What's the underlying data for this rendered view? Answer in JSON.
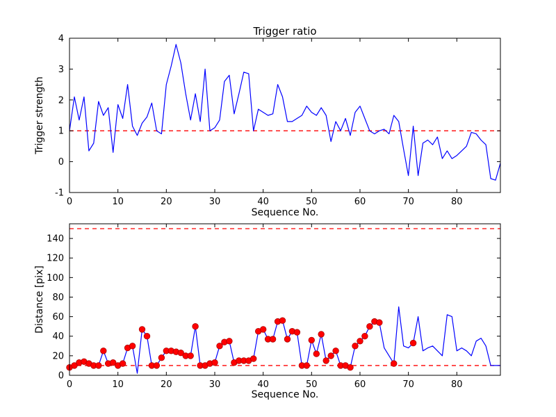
{
  "figure": {
    "background": "#ffffff",
    "line_color": "#0000ff",
    "dash_color": "#ff0000",
    "marker_face": "#ff0000",
    "marker_edge": "#aa0000",
    "axis_color": "#000000"
  },
  "chart_data": [
    {
      "type": "line",
      "title": "Trigger ratio",
      "xlabel": "Sequence No.",
      "ylabel": "Trigger strength",
      "xlim": [
        0,
        89
      ],
      "ylim": [
        -1,
        4
      ],
      "xticks": [
        0,
        10,
        20,
        30,
        40,
        50,
        60,
        70,
        80
      ],
      "yticks": [
        -1,
        0,
        1,
        2,
        3,
        4
      ],
      "thresholds": [
        1.0
      ],
      "legend": "none",
      "grid": false,
      "y": [
        1.0,
        2.1,
        1.35,
        2.1,
        0.35,
        0.6,
        1.95,
        1.5,
        1.75,
        0.3,
        1.85,
        1.4,
        2.5,
        1.15,
        0.85,
        1.25,
        1.45,
        1.9,
        1.0,
        0.9,
        2.5,
        3.1,
        3.8,
        3.2,
        2.2,
        1.35,
        2.2,
        1.3,
        3.0,
        1.0,
        1.1,
        1.35,
        2.6,
        2.8,
        1.55,
        2.2,
        2.9,
        2.85,
        1.0,
        1.7,
        1.6,
        1.5,
        1.55,
        2.5,
        2.1,
        1.3,
        1.3,
        1.4,
        1.5,
        1.8,
        1.6,
        1.5,
        1.75,
        1.5,
        0.65,
        1.3,
        1.0,
        1.4,
        0.85,
        1.6,
        1.8,
        1.4,
        1.0,
        0.9,
        1.0,
        1.05,
        0.9,
        1.5,
        1.3,
        0.4,
        -0.45,
        1.15,
        -0.45,
        0.6,
        0.7,
        0.55,
        0.8,
        0.1,
        0.35,
        0.1,
        0.2,
        0.35,
        0.5,
        0.95,
        0.9,
        0.7,
        0.55,
        -0.55,
        -0.6,
        -0.05
      ],
      "markers": []
    },
    {
      "type": "line",
      "title": "",
      "xlabel": "Sequence No.",
      "ylabel": "Distance [pix]",
      "xlim": [
        0,
        89
      ],
      "ylim": [
        0,
        155
      ],
      "xticks": [
        0,
        10,
        20,
        30,
        40,
        50,
        60,
        70,
        80
      ],
      "yticks": [
        0,
        20,
        40,
        60,
        80,
        100,
        120,
        140
      ],
      "thresholds": [
        150,
        10
      ],
      "legend": "none",
      "grid": false,
      "y": [
        8,
        10,
        13,
        14,
        12,
        10,
        10,
        25,
        12,
        13,
        10,
        12,
        28,
        30,
        2,
        47,
        40,
        10,
        10,
        18,
        25,
        25,
        24,
        23,
        20,
        20,
        50,
        10,
        10,
        12,
        13,
        30,
        34,
        35,
        13,
        15,
        15,
        15,
        17,
        45,
        47,
        37,
        37,
        55,
        56,
        37,
        45,
        44,
        10,
        10,
        36,
        22,
        42,
        15,
        20,
        25,
        10,
        10,
        8,
        30,
        35,
        40,
        50,
        55,
        54,
        28,
        20,
        12,
        70,
        30,
        28,
        33,
        60,
        25,
        28,
        30,
        25,
        20,
        62,
        60,
        25,
        28,
        25,
        20,
        35,
        38,
        30,
        10,
        10,
        10
      ],
      "markers": [
        0,
        1,
        2,
        3,
        4,
        5,
        6,
        7,
        8,
        9,
        10,
        11,
        12,
        13,
        15,
        16,
        17,
        18,
        19,
        20,
        21,
        22,
        23,
        24,
        25,
        26,
        27,
        28,
        29,
        30,
        31,
        32,
        33,
        34,
        35,
        36,
        37,
        38,
        39,
        40,
        41,
        42,
        43,
        44,
        45,
        46,
        47,
        48,
        49,
        50,
        51,
        52,
        53,
        54,
        55,
        56,
        57,
        58,
        59,
        60,
        61,
        62,
        63,
        64,
        67,
        71
      ]
    }
  ]
}
